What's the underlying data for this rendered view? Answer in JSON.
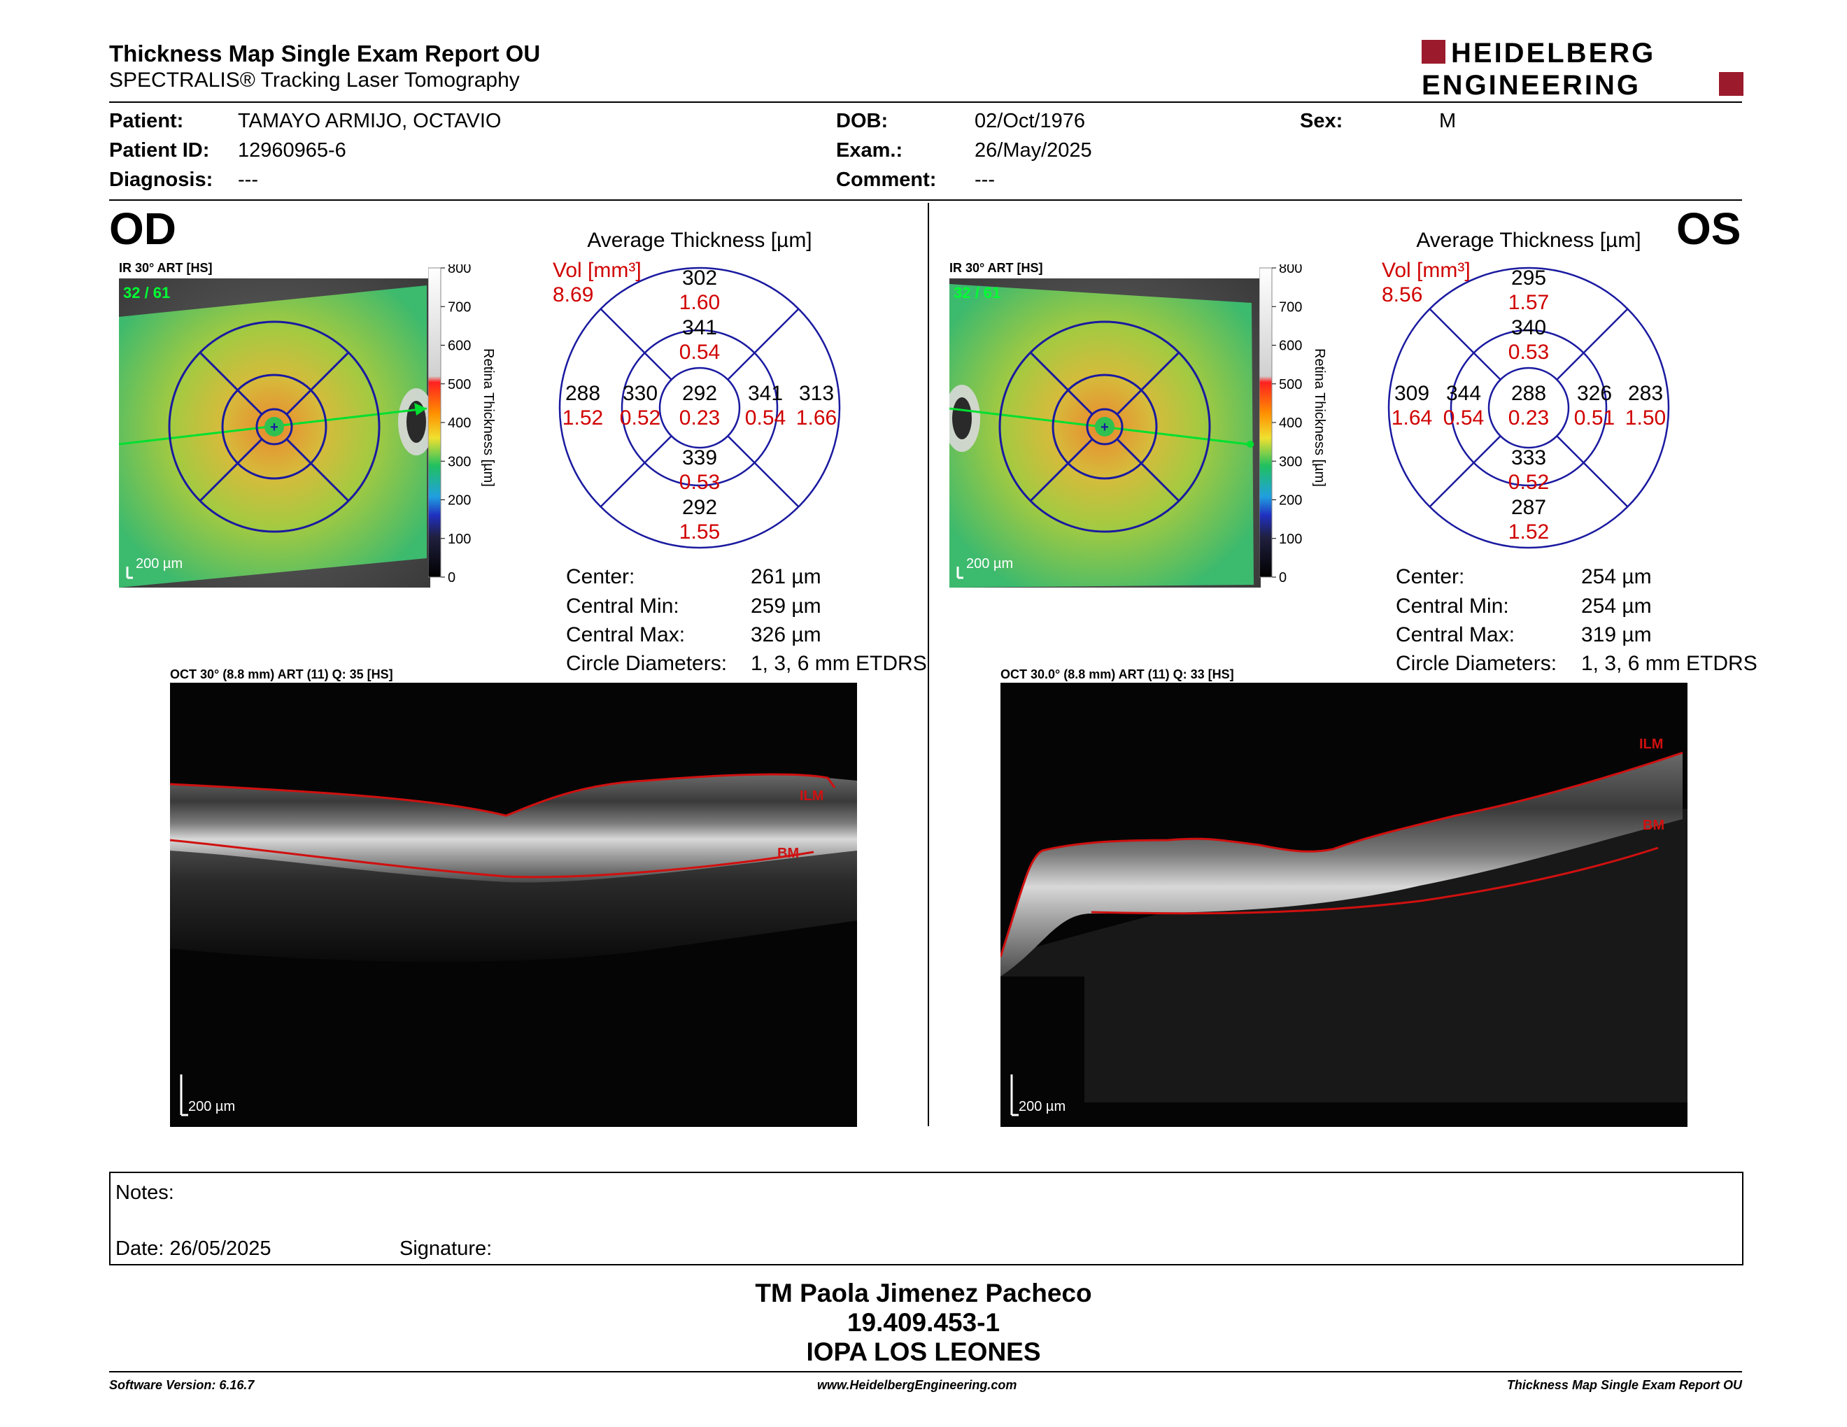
{
  "header": {
    "title": "Thickness Map Single Exam Report OU",
    "subtitle": "SPECTRALIS® Tracking Laser Tomography",
    "logo_line1": "HEIDELBERG",
    "logo_line2": "ENGINEERING",
    "logo_color": "#9b1b2c"
  },
  "patient": {
    "patient_label": "Patient:",
    "patient_value": "TAMAYO ARMIJO, OCTAVIO",
    "id_label": "Patient ID:",
    "id_value": "12960965-6",
    "diag_label": "Diagnosis:",
    "diag_value": "---",
    "dob_label": "DOB:",
    "dob_value": "02/Oct/1976",
    "exam_label": "Exam.:",
    "exam_value": "26/May/2025",
    "comment_label": "Comment:",
    "comment_value": "---",
    "sex_label": "Sex:",
    "sex_value": "M"
  },
  "od": {
    "eye_label": "OD",
    "ir_caption": "IR 30° ART [HS]",
    "ir_overlay": "32 / 61",
    "scale_bar": "200 µm",
    "colorbar_title": "Retina  Thickness [µm]",
    "colorbar_ticks": [
      "800",
      "700",
      "600",
      "500",
      "400",
      "300",
      "200",
      "100",
      "0"
    ],
    "chart_title": "Average Thickness [µm]",
    "vol_label": "Vol [mm³]",
    "vol_value": "8.69",
    "grid": {
      "center": {
        "t": "292",
        "v": "0.23"
      },
      "inner_superior": {
        "t": "341",
        "v": "0.54"
      },
      "inner_inferior": {
        "t": "339",
        "v": "0.53"
      },
      "inner_left": {
        "t": "330",
        "v": "0.52"
      },
      "inner_right": {
        "t": "341",
        "v": "0.54"
      },
      "outer_superior": {
        "t": "302",
        "v": "1.60"
      },
      "outer_inferior": {
        "t": "292",
        "v": "1.55"
      },
      "outer_left": {
        "t": "288",
        "v": "1.52"
      },
      "outer_right": {
        "t": "313",
        "v": "1.66"
      }
    },
    "stats": [
      {
        "label": "Center:",
        "value": "261 µm"
      },
      {
        "label": "Central Min:",
        "value": "259 µm"
      },
      {
        "label": "Central Max:",
        "value": "326 µm"
      },
      {
        "label": "Circle Diameters:",
        "value": "1, 3, 6 mm ETDRS"
      }
    ],
    "oct_caption": "OCT 30° (8.8 mm) ART (11) Q: 35 [HS]",
    "ilm_label": "ILM",
    "bm_label": "BM",
    "oct_scale": "200 µm"
  },
  "os": {
    "eye_label": "OS",
    "ir_caption": "IR 30° ART [HS]",
    "ir_overlay": "32 / 61",
    "scale_bar": "200 µm",
    "colorbar_title": "Retina  Thickness [µm]",
    "colorbar_ticks": [
      "800",
      "700",
      "600",
      "500",
      "400",
      "300",
      "200",
      "100",
      "0"
    ],
    "chart_title": "Average Thickness [µm]",
    "vol_label": "Vol [mm³]",
    "vol_value": "8.56",
    "grid": {
      "center": {
        "t": "288",
        "v": "0.23"
      },
      "inner_superior": {
        "t": "340",
        "v": "0.53"
      },
      "inner_inferior": {
        "t": "333",
        "v": "0.52"
      },
      "inner_left": {
        "t": "344",
        "v": "0.54"
      },
      "inner_right": {
        "t": "326",
        "v": "0.51"
      },
      "outer_superior": {
        "t": "295",
        "v": "1.57"
      },
      "outer_inferior": {
        "t": "287",
        "v": "1.52"
      },
      "outer_left": {
        "t": "309",
        "v": "1.64"
      },
      "outer_right": {
        "t": "283",
        "v": "1.50"
      }
    },
    "stats": [
      {
        "label": "Center:",
        "value": "254 µm"
      },
      {
        "label": "Central Min:",
        "value": "254 µm"
      },
      {
        "label": "Central Max:",
        "value": "319 µm"
      },
      {
        "label": "Circle Diameters:",
        "value": "1, 3, 6 mm ETDRS"
      }
    ],
    "oct_caption": "OCT 30.0° (8.8 mm) ART (11) Q: 33 [HS]",
    "ilm_label": "ILM",
    "bm_label": "BM",
    "oct_scale": "200 µm"
  },
  "notes": {
    "label": "Notes:",
    "date": "Date: 26/05/2025",
    "signature": "Signature:"
  },
  "signoff": {
    "name": "TM Paola Jimenez Pacheco",
    "rut": "19.409.453-1",
    "clinic": "IOPA LOS LEONES"
  },
  "footer": {
    "software": "Software Version: 6.16.7",
    "website": "www.HeidelbergEngineering.com",
    "report": "Thickness Map Single Exam Report OU"
  }
}
